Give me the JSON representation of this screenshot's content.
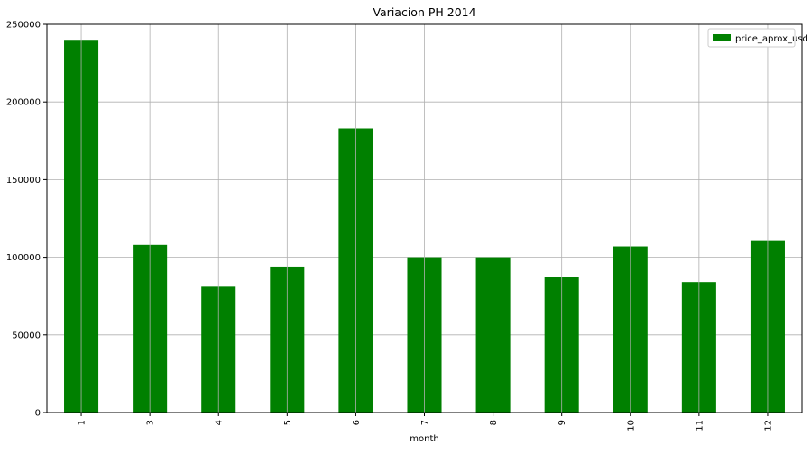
{
  "chart_data": {
    "type": "bar",
    "title": "Variacion PH 2014",
    "xlabel": "month",
    "ylabel": "",
    "categories": [
      "1",
      "3",
      "4",
      "5",
      "6",
      "7",
      "8",
      "9",
      "10",
      "11",
      "12"
    ],
    "series": [
      {
        "name": "price_aprox_usd",
        "color": "#008000",
        "values": [
          240000,
          108000,
          81000,
          94000,
          183000,
          100000,
          100000,
          87500,
          107000,
          84000,
          111000
        ]
      }
    ],
    "ylim": [
      0,
      250000
    ],
    "yticks": [
      0,
      50000,
      100000,
      150000,
      200000,
      250000
    ],
    "ytick_labels": [
      "0",
      "50000",
      "100000",
      "150000",
      "200000",
      "250000"
    ],
    "grid": true,
    "legend": "top-right"
  }
}
